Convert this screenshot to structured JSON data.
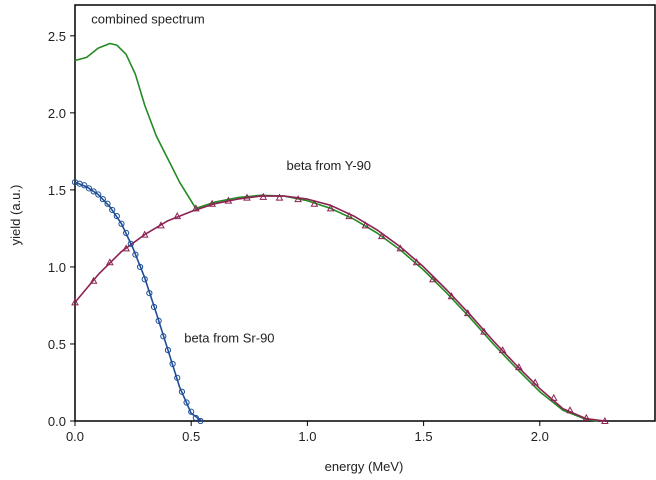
{
  "chart_data": {
    "type": "line",
    "xlabel": "energy (MeV)",
    "ylabel": "yield (a.u.)",
    "xlim": [
      0,
      2.5
    ],
    "ylim": [
      0,
      2.7
    ],
    "xticks": [
      "0.0",
      "0.5",
      "1.0",
      "1.5",
      "2.0"
    ],
    "yticks": [
      "0.0",
      "0.5",
      "1.0",
      "1.5",
      "2.0",
      "2.5"
    ],
    "grid": false,
    "legend": "none",
    "annotations": [
      {
        "text": "combined spectrum",
        "x": 0.07,
        "y": 2.58
      },
      {
        "text": "beta from Y-90",
        "x": 0.91,
        "y": 1.63
      },
      {
        "text": "beta from Sr-90",
        "x": 0.47,
        "y": 0.51
      }
    ],
    "series": [
      {
        "key": "combined",
        "color": "#228b22",
        "style": "line",
        "x": [
          0.0,
          0.05,
          0.1,
          0.15,
          0.18,
          0.22,
          0.26,
          0.3,
          0.35,
          0.4,
          0.45,
          0.52,
          0.6,
          0.7,
          0.8,
          0.9,
          1.0,
          1.1,
          1.2,
          1.3,
          1.4,
          1.5,
          1.6,
          1.7,
          1.8,
          1.9,
          2.0,
          2.1,
          2.2,
          2.25
        ],
        "y": [
          2.34,
          2.36,
          2.42,
          2.45,
          2.44,
          2.38,
          2.25,
          2.05,
          1.85,
          1.7,
          1.55,
          1.38,
          1.42,
          1.45,
          1.465,
          1.46,
          1.43,
          1.38,
          1.31,
          1.22,
          1.11,
          0.98,
          0.83,
          0.67,
          0.5,
          0.34,
          0.19,
          0.07,
          0.01,
          0.0
        ]
      },
      {
        "key": "y90-line",
        "color": "#8b2252",
        "style": "line",
        "x": [
          0.0,
          0.1,
          0.2,
          0.3,
          0.4,
          0.5,
          0.6,
          0.7,
          0.8,
          0.9,
          1.0,
          1.1,
          1.2,
          1.3,
          1.4,
          1.5,
          1.6,
          1.7,
          1.8,
          1.9,
          2.0,
          2.1,
          2.2,
          2.28
        ],
        "y": [
          0.77,
          0.95,
          1.1,
          1.21,
          1.3,
          1.36,
          1.41,
          1.44,
          1.46,
          1.46,
          1.44,
          1.4,
          1.33,
          1.24,
          1.13,
          1.0,
          0.85,
          0.69,
          0.52,
          0.36,
          0.21,
          0.08,
          0.015,
          0.0
        ]
      },
      {
        "key": "y90-points",
        "color": "#8b2252",
        "style": "triangle",
        "x": [
          0.0,
          0.08,
          0.15,
          0.22,
          0.3,
          0.37,
          0.44,
          0.52,
          0.59,
          0.66,
          0.74,
          0.81,
          0.88,
          0.96,
          1.03,
          1.1,
          1.18,
          1.25,
          1.32,
          1.4,
          1.47,
          1.54,
          1.62,
          1.69,
          1.76,
          1.84,
          1.91,
          1.98,
          2.06,
          2.13,
          2.2,
          2.28
        ],
        "y": [
          0.77,
          0.91,
          1.03,
          1.12,
          1.21,
          1.27,
          1.33,
          1.38,
          1.41,
          1.43,
          1.45,
          1.455,
          1.45,
          1.44,
          1.41,
          1.38,
          1.33,
          1.27,
          1.2,
          1.12,
          1.03,
          0.92,
          0.81,
          0.7,
          0.58,
          0.46,
          0.35,
          0.25,
          0.15,
          0.07,
          0.02,
          0.0
        ]
      },
      {
        "key": "sr90-line",
        "color": "#1f4e96",
        "style": "line",
        "x": [
          0.0,
          0.05,
          0.1,
          0.15,
          0.2,
          0.25,
          0.3,
          0.35,
          0.4,
          0.45,
          0.5,
          0.546
        ],
        "y": [
          1.55,
          1.52,
          1.47,
          1.39,
          1.28,
          1.12,
          0.93,
          0.7,
          0.46,
          0.22,
          0.05,
          0.0
        ]
      },
      {
        "key": "sr90-points",
        "color": "#1f4e96",
        "style": "circle",
        "x": [
          0.0,
          0.02,
          0.04,
          0.06,
          0.08,
          0.1,
          0.12,
          0.14,
          0.16,
          0.18,
          0.2,
          0.22,
          0.24,
          0.26,
          0.28,
          0.3,
          0.32,
          0.34,
          0.36,
          0.38,
          0.4,
          0.42,
          0.44,
          0.46,
          0.48,
          0.5,
          0.52,
          0.54
        ],
        "y": [
          1.55,
          1.54,
          1.53,
          1.51,
          1.49,
          1.47,
          1.44,
          1.41,
          1.37,
          1.33,
          1.28,
          1.22,
          1.15,
          1.08,
          1.0,
          0.92,
          0.83,
          0.74,
          0.65,
          0.55,
          0.46,
          0.37,
          0.28,
          0.19,
          0.12,
          0.06,
          0.02,
          0.0
        ]
      }
    ]
  }
}
